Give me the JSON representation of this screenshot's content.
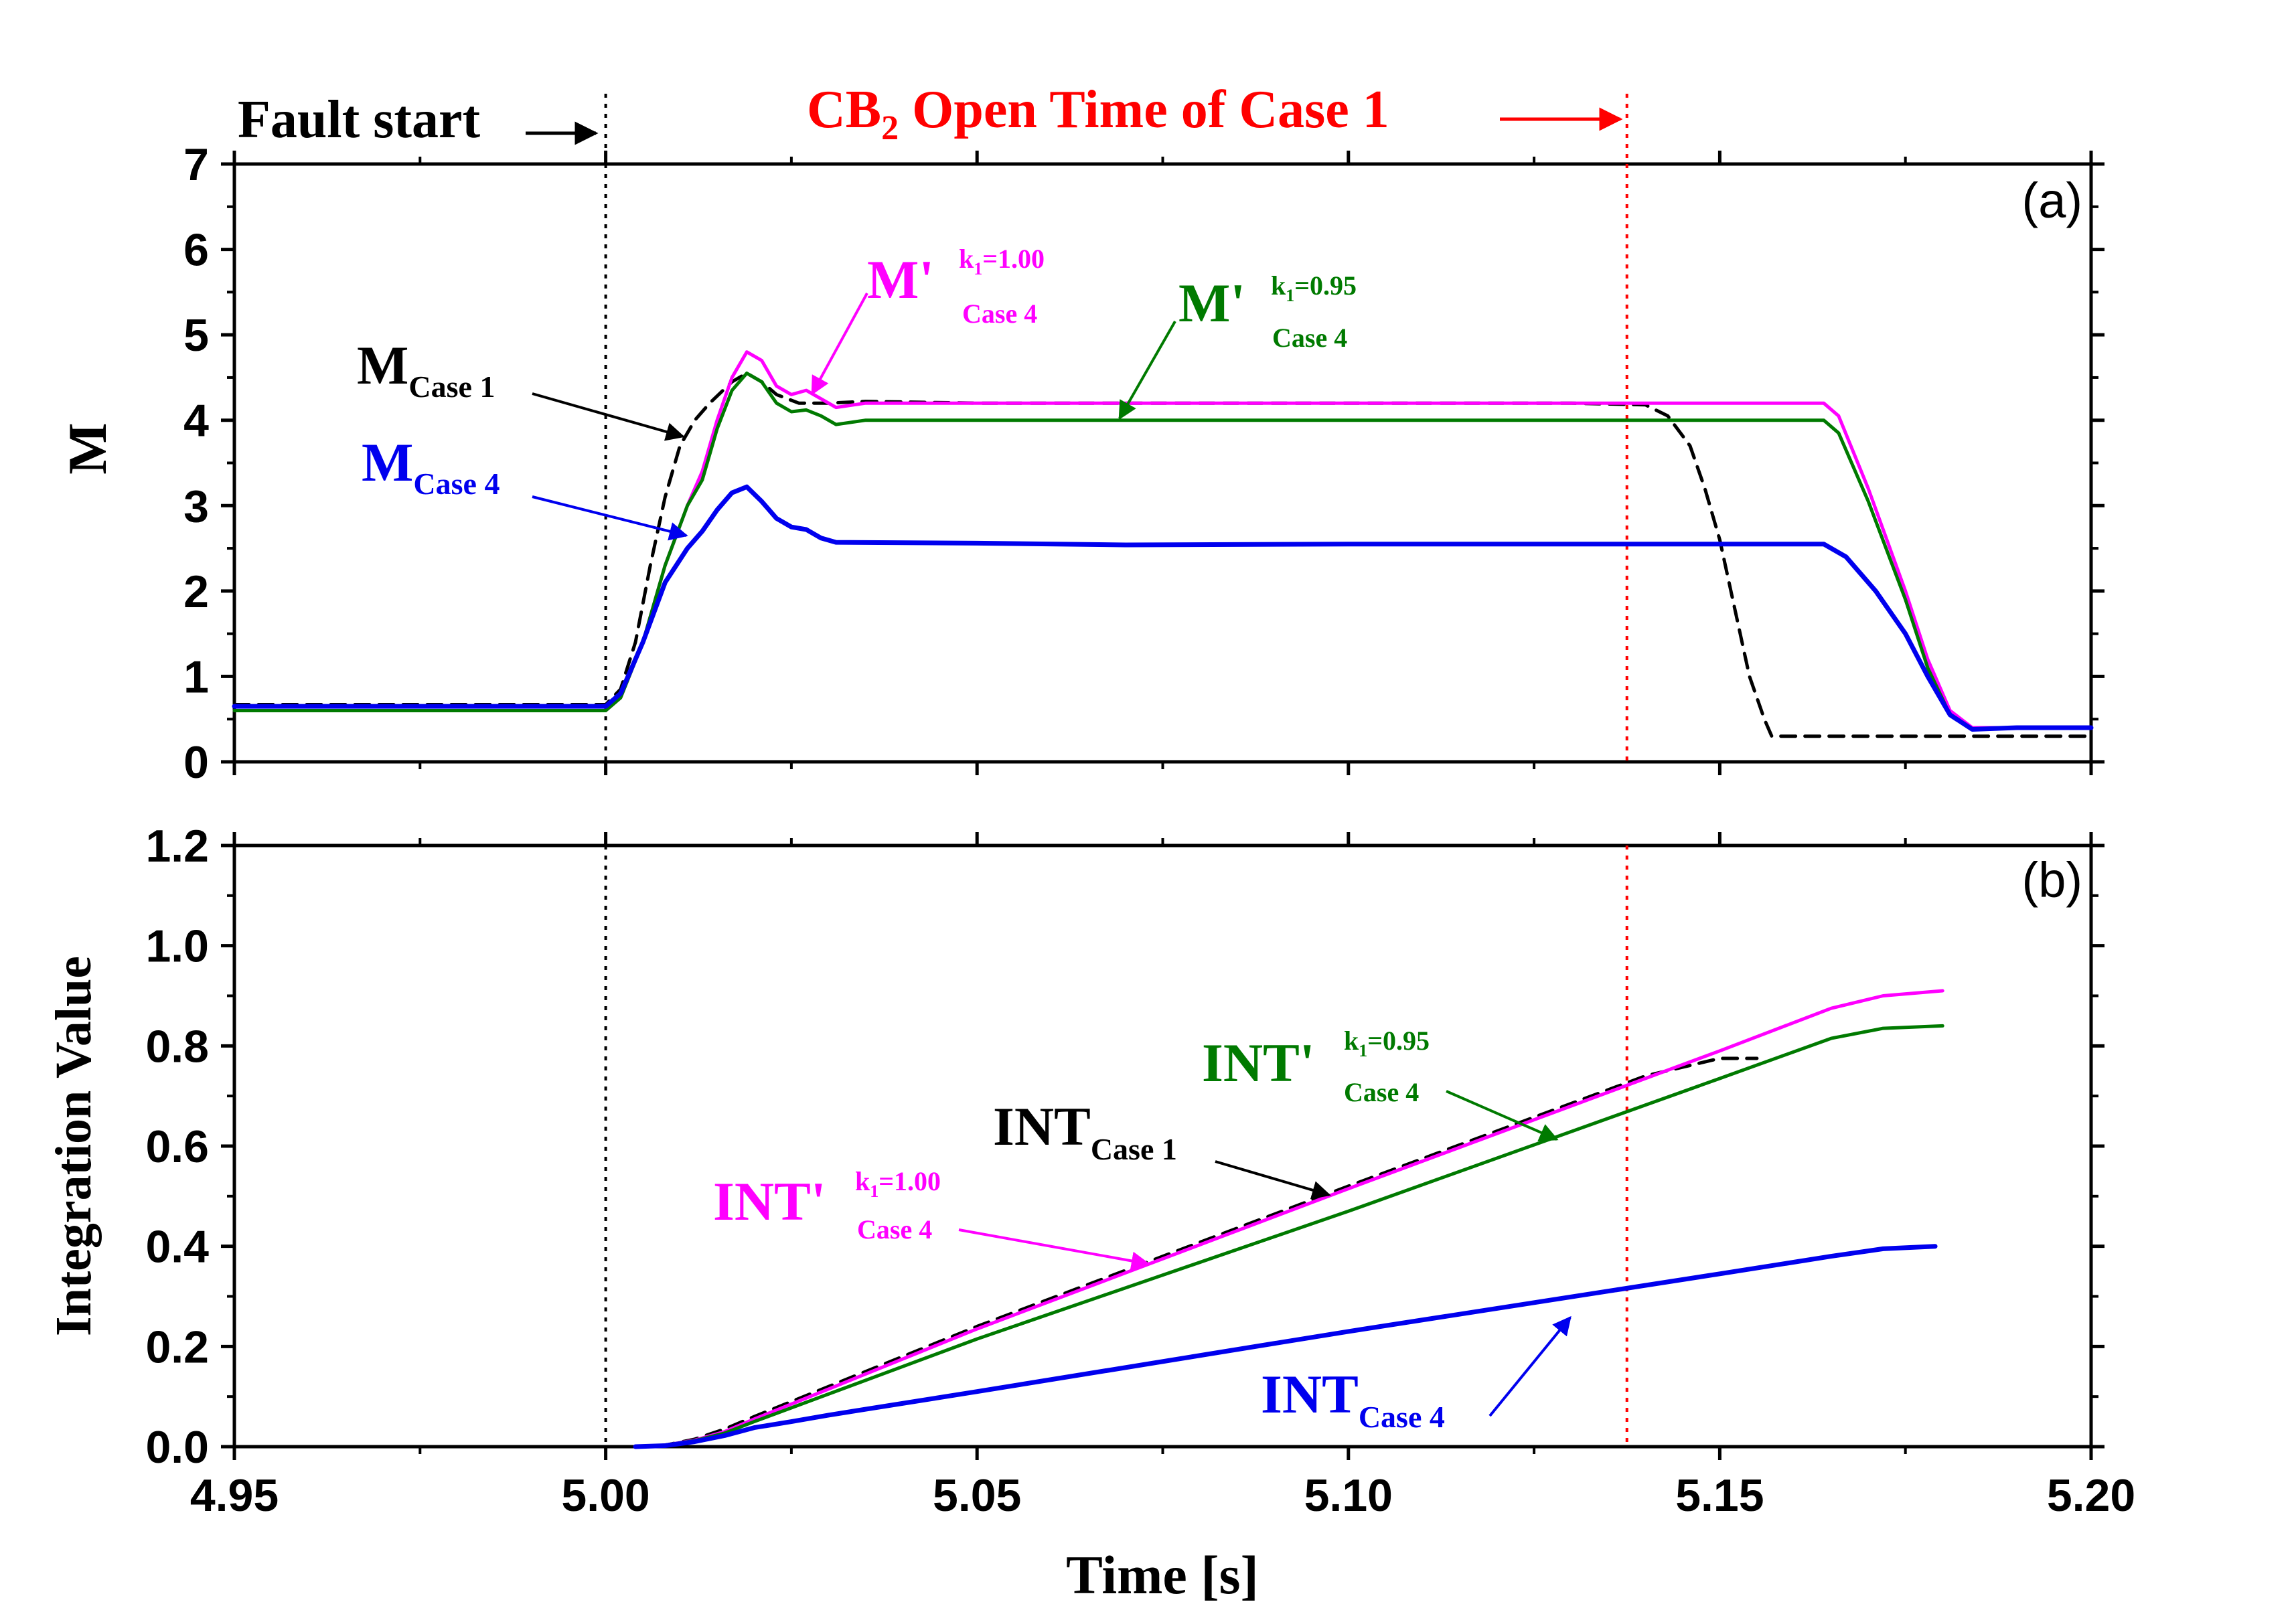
{
  "header": {
    "fault_label": "Fault start",
    "cb_prefix": "CB",
    "cb_sub": "2",
    "cb_rest": " Open Time of Case 1"
  },
  "colors": {
    "black": "#000000",
    "magenta": "#ff00ff",
    "green": "#007a00",
    "blue": "#0000ee",
    "red": "#ff0000"
  },
  "chart_data": [
    {
      "id": "a",
      "type": "line",
      "panel_label": "(a)",
      "ylabel": "M",
      "xlim": [
        4.95,
        5.2
      ],
      "ylim": [
        0,
        7
      ],
      "yticks": [
        "0",
        "1",
        "2",
        "3",
        "4",
        "5",
        "6",
        "7"
      ],
      "vlines": [
        {
          "x": 5.0,
          "color": "black"
        },
        {
          "x": 5.1375,
          "color": "red"
        }
      ],
      "series": [
        {
          "id": "m_case1",
          "color": "black",
          "dash": true,
          "points": [
            [
              4.95,
              0.67
            ],
            [
              5.0,
              0.67
            ],
            [
              5.002,
              0.85
            ],
            [
              5.004,
              1.4
            ],
            [
              5.006,
              2.3
            ],
            [
              5.008,
              3.1
            ],
            [
              5.01,
              3.7
            ],
            [
              5.012,
              4.0
            ],
            [
              5.014,
              4.2
            ],
            [
              5.017,
              4.45
            ],
            [
              5.019,
              4.55
            ],
            [
              5.021,
              4.45
            ],
            [
              5.023,
              4.3
            ],
            [
              5.026,
              4.2
            ],
            [
              5.03,
              4.2
            ],
            [
              5.035,
              4.22
            ],
            [
              5.05,
              4.2
            ],
            [
              5.1,
              4.2
            ],
            [
              5.13,
              4.2
            ],
            [
              5.14,
              4.18
            ],
            [
              5.143,
              4.05
            ],
            [
              5.146,
              3.7
            ],
            [
              5.148,
              3.2
            ],
            [
              5.15,
              2.6
            ],
            [
              5.152,
              1.8
            ],
            [
              5.154,
              1.0
            ],
            [
              5.156,
              0.5
            ],
            [
              5.157,
              0.3
            ],
            [
              5.17,
              0.3
            ],
            [
              5.2,
              0.3
            ]
          ]
        },
        {
          "id": "m_prime_100",
          "color": "magenta",
          "dash": false,
          "points": [
            [
              4.95,
              0.6
            ],
            [
              5.0,
              0.6
            ],
            [
              5.002,
              0.75
            ],
            [
              5.005,
              1.4
            ],
            [
              5.008,
              2.3
            ],
            [
              5.011,
              3.0
            ],
            [
              5.013,
              3.4
            ],
            [
              5.015,
              4.0
            ],
            [
              5.017,
              4.5
            ],
            [
              5.019,
              4.8
            ],
            [
              5.021,
              4.7
            ],
            [
              5.023,
              4.4
            ],
            [
              5.025,
              4.3
            ],
            [
              5.027,
              4.35
            ],
            [
              5.029,
              4.25
            ],
            [
              5.031,
              4.15
            ],
            [
              5.035,
              4.2
            ],
            [
              5.05,
              4.2
            ],
            [
              5.1,
              4.2
            ],
            [
              5.164,
              4.2
            ],
            [
              5.166,
              4.05
            ],
            [
              5.17,
              3.2
            ],
            [
              5.175,
              2.0
            ],
            [
              5.178,
              1.2
            ],
            [
              5.181,
              0.6
            ],
            [
              5.184,
              0.4
            ],
            [
              5.19,
              0.4
            ],
            [
              5.2,
              0.4
            ]
          ]
        },
        {
          "id": "m_prime_095",
          "color": "green",
          "dash": false,
          "points": [
            [
              4.95,
              0.6
            ],
            [
              5.0,
              0.6
            ],
            [
              5.002,
              0.75
            ],
            [
              5.005,
              1.4
            ],
            [
              5.008,
              2.3
            ],
            [
              5.011,
              3.0
            ],
            [
              5.013,
              3.3
            ],
            [
              5.015,
              3.9
            ],
            [
              5.017,
              4.35
            ],
            [
              5.019,
              4.55
            ],
            [
              5.021,
              4.45
            ],
            [
              5.023,
              4.2
            ],
            [
              5.025,
              4.1
            ],
            [
              5.027,
              4.12
            ],
            [
              5.029,
              4.05
            ],
            [
              5.031,
              3.95
            ],
            [
              5.035,
              4.0
            ],
            [
              5.05,
              4.0
            ],
            [
              5.1,
              4.0
            ],
            [
              5.164,
              4.0
            ],
            [
              5.166,
              3.85
            ],
            [
              5.17,
              3.05
            ],
            [
              5.175,
              1.9
            ],
            [
              5.178,
              1.1
            ],
            [
              5.181,
              0.55
            ],
            [
              5.184,
              0.38
            ],
            [
              5.19,
              0.4
            ],
            [
              5.2,
              0.4
            ]
          ]
        },
        {
          "id": "m_case4",
          "color": "blue",
          "dash": false,
          "points": [
            [
              4.95,
              0.65
            ],
            [
              5.0,
              0.65
            ],
            [
              5.002,
              0.8
            ],
            [
              5.005,
              1.4
            ],
            [
              5.008,
              2.1
            ],
            [
              5.011,
              2.5
            ],
            [
              5.013,
              2.7
            ],
            [
              5.015,
              2.95
            ],
            [
              5.017,
              3.15
            ],
            [
              5.019,
              3.22
            ],
            [
              5.021,
              3.05
            ],
            [
              5.023,
              2.85
            ],
            [
              5.025,
              2.75
            ],
            [
              5.027,
              2.72
            ],
            [
              5.029,
              2.62
            ],
            [
              5.031,
              2.57
            ],
            [
              5.05,
              2.56
            ],
            [
              5.07,
              2.54
            ],
            [
              5.1,
              2.55
            ],
            [
              5.164,
              2.55
            ],
            [
              5.167,
              2.4
            ],
            [
              5.171,
              2.0
            ],
            [
              5.175,
              1.5
            ],
            [
              5.178,
              1.0
            ],
            [
              5.181,
              0.55
            ],
            [
              5.184,
              0.38
            ],
            [
              5.19,
              0.4
            ],
            [
              5.2,
              0.4
            ]
          ]
        }
      ],
      "annotations": [
        {
          "id": "lbl_m_case1",
          "main": "M",
          "sub": "Case 1",
          "color": "black"
        },
        {
          "id": "lbl_mp_100",
          "main": "M'",
          "k": "k",
          "ksub": "1",
          "kval": "=1.00",
          "case": "Case 4",
          "color": "magenta"
        },
        {
          "id": "lbl_mp_095",
          "main": "M'",
          "k": "k",
          "ksub": "1",
          "kval": "=0.95",
          "case": "Case 4",
          "color": "green"
        },
        {
          "id": "lbl_m_case4",
          "main": "M",
          "sub": "Case 4",
          "color": "blue"
        }
      ]
    },
    {
      "id": "b",
      "type": "line",
      "panel_label": "(b)",
      "xlabel": "Time [s]",
      "ylabel": "Integration Value",
      "xlim": [
        4.95,
        5.2
      ],
      "ylim": [
        0,
        1.2
      ],
      "xticks": [
        "4.95",
        "5.00",
        "5.05",
        "5.10",
        "5.15",
        "5.20"
      ],
      "yticks": [
        "0.0",
        "0.2",
        "0.4",
        "0.6",
        "0.8",
        "1.0",
        "1.2"
      ],
      "vlines": [
        {
          "x": 5.0,
          "color": "black"
        },
        {
          "x": 5.1375,
          "color": "red"
        }
      ],
      "series": [
        {
          "id": "int_case1",
          "color": "black",
          "dash": true,
          "points": [
            [
              5.004,
              0.0
            ],
            [
              5.008,
              0.003
            ],
            [
              5.012,
              0.015
            ],
            [
              5.016,
              0.035
            ],
            [
              5.02,
              0.06
            ],
            [
              5.03,
              0.12
            ],
            [
              5.05,
              0.24
            ],
            [
              5.1,
              0.52
            ],
            [
              5.14,
              0.74
            ],
            [
              5.15,
              0.775
            ],
            [
              5.155,
              0.775
            ]
          ]
        },
        {
          "id": "int_prime_100",
          "color": "magenta",
          "dash": false,
          "points": [
            [
              5.004,
              0.0
            ],
            [
              5.008,
              0.003
            ],
            [
              5.012,
              0.013
            ],
            [
              5.016,
              0.03
            ],
            [
              5.02,
              0.055
            ],
            [
              5.03,
              0.115
            ],
            [
              5.05,
              0.235
            ],
            [
              5.1,
              0.515
            ],
            [
              5.15,
              0.79
            ],
            [
              5.165,
              0.875
            ],
            [
              5.172,
              0.9
            ],
            [
              5.18,
              0.91
            ]
          ]
        },
        {
          "id": "int_prime_095",
          "color": "green",
          "dash": false,
          "points": [
            [
              5.004,
              0.0
            ],
            [
              5.008,
              0.003
            ],
            [
              5.012,
              0.012
            ],
            [
              5.016,
              0.027
            ],
            [
              5.02,
              0.05
            ],
            [
              5.03,
              0.105
            ],
            [
              5.05,
              0.215
            ],
            [
              5.1,
              0.47
            ],
            [
              5.15,
              0.735
            ],
            [
              5.165,
              0.815
            ],
            [
              5.172,
              0.835
            ],
            [
              5.18,
              0.84
            ]
          ]
        },
        {
          "id": "int_case4",
          "color": "blue",
          "dash": false,
          "points": [
            [
              5.004,
              0.0
            ],
            [
              5.008,
              0.002
            ],
            [
              5.012,
              0.01
            ],
            [
              5.016,
              0.022
            ],
            [
              5.02,
              0.038
            ],
            [
              5.025,
              0.05
            ],
            [
              5.03,
              0.063
            ],
            [
              5.05,
              0.11
            ],
            [
              5.1,
              0.23
            ],
            [
              5.15,
              0.345
            ],
            [
              5.165,
              0.38
            ],
            [
              5.172,
              0.395
            ],
            [
              5.179,
              0.4
            ]
          ]
        }
      ],
      "annotations": [
        {
          "id": "lbl_int_case1",
          "main": "INT",
          "sub": "Case 1",
          "color": "black"
        },
        {
          "id": "lbl_intp_100",
          "main": "INT'",
          "k": "k",
          "ksub": "1",
          "kval": "=1.00",
          "case": "Case 4",
          "color": "magenta"
        },
        {
          "id": "lbl_intp_095",
          "main": "INT'",
          "k": "k",
          "ksub": "1",
          "kval": "=0.95",
          "case": "Case 4",
          "color": "green"
        },
        {
          "id": "lbl_int_case4",
          "main": "INT",
          "sub": "Case 4",
          "color": "blue"
        }
      ]
    }
  ]
}
